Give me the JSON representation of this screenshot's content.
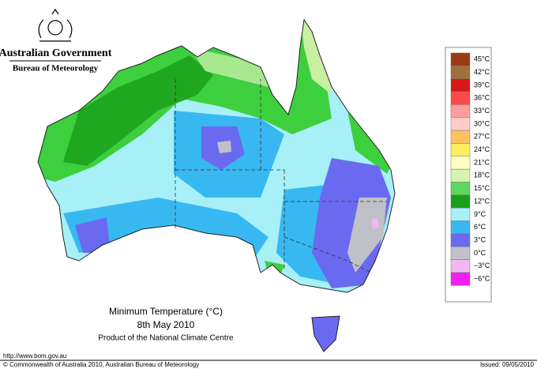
{
  "header": {
    "government": "Australian Government",
    "bureau": "Bureau of Meteorology"
  },
  "caption": {
    "title": "Minimum Temperature (°C)",
    "date": "8th May 2010",
    "product": "Product of the National Climate Centre"
  },
  "legend": {
    "labels": [
      "45°C",
      "42°C",
      "39°C",
      "36°C",
      "33°C",
      "30°C",
      "27°C",
      "24°C",
      "21°C",
      "18°C",
      "15°C",
      "12°C",
      "9°C",
      "6°C",
      "3°C",
      "0°C",
      "−3°C",
      "−6°C"
    ]
  },
  "footer": {
    "url": "http://www.bom.gov.au",
    "copyright": "© Commonwealth of Australia 2010, Australian Bureau of Meteorology",
    "issued": "Issued: 09/05/2010"
  }
}
